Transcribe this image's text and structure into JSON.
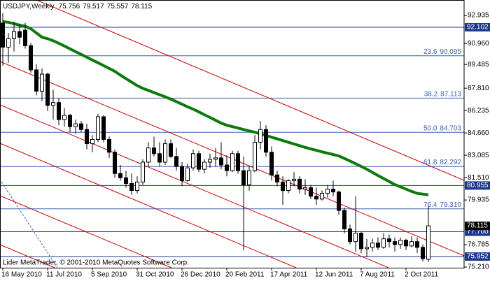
{
  "chart_data": {
    "type": "candlestick",
    "symbol": "USDJPY,Weekly",
    "footer": "Lider MetaTrader, © 2001-2010 MetaQuotes Software Corp.",
    "categories": [
      "16 May 2010",
      null,
      null,
      null,
      null,
      null,
      null,
      null,
      "11 Jul 2010",
      null,
      null,
      null,
      null,
      null,
      null,
      null,
      "5 Sep 2010",
      null,
      null,
      null,
      null,
      null,
      null,
      null,
      "31 Oct 2010",
      null,
      null,
      null,
      null,
      null,
      null,
      null,
      "26 Dec 2010",
      null,
      null,
      null,
      null,
      null,
      null,
      null,
      "20 Feb 2011",
      null,
      null,
      null,
      null,
      null,
      null,
      null,
      "17 Apr 2011",
      null,
      null,
      null,
      null,
      null,
      null,
      null,
      "12 Jun 2011",
      null,
      null,
      null,
      null,
      null,
      null,
      null,
      "7 Aug 2011",
      null,
      null,
      null,
      null,
      null,
      null,
      null,
      "2 Oct 2011",
      null,
      null,
      null,
      null
    ],
    "open": [
      92.4,
      90.7,
      91.3,
      91.8,
      91.9,
      90.8,
      89.1,
      87.6,
      88.8,
      86.6,
      86.8,
      85.6,
      85.9,
      85.1,
      85.3,
      84.9,
      83.9,
      84.2,
      85.8,
      84.2,
      83.3,
      81.8,
      81.5,
      81.1,
      80.6,
      81.2,
      82.6,
      83.6,
      83.2,
      82.6,
      83.9,
      83.0,
      82.3,
      81.3,
      82.2,
      83.2,
      82.1,
      82.6,
      82.8,
      82.9,
      82.4,
      82.0,
      83.2,
      82.0,
      81.0,
      82.0,
      84.0,
      84.9,
      83.3,
      81.7,
      81.2,
      80.6,
      81.3,
      81.4,
      80.7,
      80.8,
      80.2,
      80.0,
      80.4,
      80.7,
      80.5,
      79.2,
      77.9,
      77.0,
      77.6,
      76.5,
      76.6,
      76.9,
      76.6,
      77.2,
      77.0,
      76.8,
      77.1,
      76.7,
      77.0,
      76.6,
      75.756
    ],
    "high": [
      93.1,
      91.7,
      92.5,
      92.3,
      92.4,
      91.0,
      89.5,
      89.2,
      88.9,
      87.7,
      87.1,
      86.4,
      86.0,
      85.6,
      85.5,
      85.3,
      84.5,
      86.0,
      85.9,
      84.4,
      83.5,
      82.4,
      82.0,
      81.8,
      81.6,
      82.8,
      84.0,
      84.4,
      84.0,
      84.2,
      84.2,
      83.6,
      82.6,
      82.5,
      83.5,
      83.4,
      82.8,
      83.2,
      83.6,
      84.0,
      83.1,
      83.4,
      83.4,
      83.0,
      82.3,
      84.5,
      85.5,
      85.2,
      83.7,
      82.0,
      81.6,
      81.4,
      81.9,
      81.6,
      81.4,
      81.0,
      80.8,
      80.6,
      81.0,
      81.3,
      80.6,
      79.4,
      78.2,
      80.2,
      77.7,
      77.2,
      77.2,
      77.3,
      77.6,
      77.5,
      77.3,
      77.3,
      77.2,
      77.4,
      77.3,
      76.8,
      79.517
    ],
    "low": [
      89.4,
      89.6,
      90.4,
      90.9,
      90.6,
      88.9,
      87.3,
      86.9,
      86.2,
      85.6,
      85.2,
      85.1,
      84.7,
      84.6,
      84.7,
      83.5,
      83.3,
      84.0,
      84.0,
      82.9,
      81.5,
      81.3,
      80.8,
      80.3,
      80.4,
      81.0,
      82.3,
      83.0,
      82.3,
      82.4,
      82.9,
      82.0,
      80.9,
      81.2,
      82.0,
      81.9,
      81.8,
      82.2,
      82.3,
      82.1,
      81.6,
      81.9,
      81.8,
      76.4,
      80.6,
      81.9,
      83.5,
      83.0,
      81.3,
      80.9,
      79.6,
      80.4,
      80.9,
      80.4,
      80.3,
      80.0,
      79.6,
      79.9,
      80.1,
      80.2,
      78.9,
      77.6,
      76.8,
      76.3,
      76.2,
      75.9,
      76.3,
      76.4,
      76.5,
      76.6,
      76.3,
      76.5,
      76.4,
      76.6,
      76.2,
      75.6,
      75.557
    ],
    "close": [
      90.7,
      91.3,
      91.8,
      91.4,
      90.8,
      89.1,
      87.6,
      88.8,
      86.6,
      86.8,
      85.6,
      85.9,
      85.1,
      85.3,
      84.9,
      83.9,
      84.2,
      85.8,
      84.2,
      83.3,
      81.8,
      81.5,
      81.1,
      80.6,
      81.2,
      82.6,
      83.6,
      83.2,
      82.6,
      83.9,
      83.0,
      82.3,
      81.3,
      82.2,
      83.2,
      82.1,
      82.6,
      82.8,
      82.9,
      82.4,
      82.0,
      83.2,
      82.0,
      81.0,
      82.0,
      84.0,
      84.9,
      83.3,
      81.7,
      81.2,
      80.6,
      81.3,
      81.4,
      80.7,
      80.8,
      80.2,
      80.0,
      80.4,
      80.7,
      80.5,
      79.2,
      77.9,
      77.0,
      77.6,
      76.5,
      76.6,
      76.9,
      76.6,
      77.2,
      77.0,
      76.8,
      77.1,
      76.7,
      77.0,
      76.6,
      75.8,
      78.115
    ],
    "moving_average": {
      "color": "#0a7a0a",
      "values": [
        92.5,
        92.45,
        92.35,
        92.25,
        92.17,
        92.0,
        91.7,
        91.4,
        91.3,
        91.15,
        90.97,
        90.78,
        90.58,
        90.38,
        90.19,
        89.99,
        89.79,
        89.6,
        89.4,
        89.2,
        89.0,
        88.73,
        88.48,
        88.24,
        87.99,
        87.8,
        87.65,
        87.5,
        87.35,
        87.2,
        87.04,
        86.86,
        86.68,
        86.5,
        86.33,
        86.14,
        85.94,
        85.75,
        85.55,
        85.35,
        85.2,
        85.1,
        85.0,
        84.9,
        84.8,
        84.71,
        84.6,
        84.48,
        84.36,
        84.24,
        84.12,
        84.0,
        83.88,
        83.76,
        83.64,
        83.53,
        83.43,
        83.33,
        83.23,
        83.14,
        83.04,
        82.86,
        82.68,
        82.49,
        82.3,
        82.1,
        81.88,
        81.66,
        81.45,
        81.23,
        81.02,
        80.86,
        80.7,
        80.54,
        80.4,
        80.35,
        80.3
      ]
    },
    "fibo": {
      "color": "#3c64b4",
      "levels": [
        {
          "ratio": "23.6",
          "price": 90.095
        },
        {
          "ratio": "38.2",
          "price": 87.113
        },
        {
          "ratio": "50.0",
          "price": 84.703
        },
        {
          "ratio": "61.8",
          "price": 82.292
        },
        {
          "ratio": "76.4",
          "price": {
            "value": 79.31,
            "label": "79.310"
          }
        }
      ]
    },
    "price_markers": {
      "color": "#1c3a8c",
      "values": [
        92.102,
        80.955,
        {
          "value": 77.7,
          "label": "77.700"
        },
        75.952
      ]
    },
    "ylim": [
      75.164,
      94.022
    ],
    "yticks": [
      92.935,
      {
        "value": 90.96,
        "label": "90.960"
      },
      89.485,
      {
        "value": 87.81,
        "label": "87.810"
      },
      86.235,
      {
        "value": 84.66,
        "label": "84.660"
      },
      83.085,
      {
        "value": 81.51,
        "label": "81.510"
      },
      79.935,
      76.785,
      {
        "value": 75.21,
        "label": "75.210"
      }
    ]
  }
}
